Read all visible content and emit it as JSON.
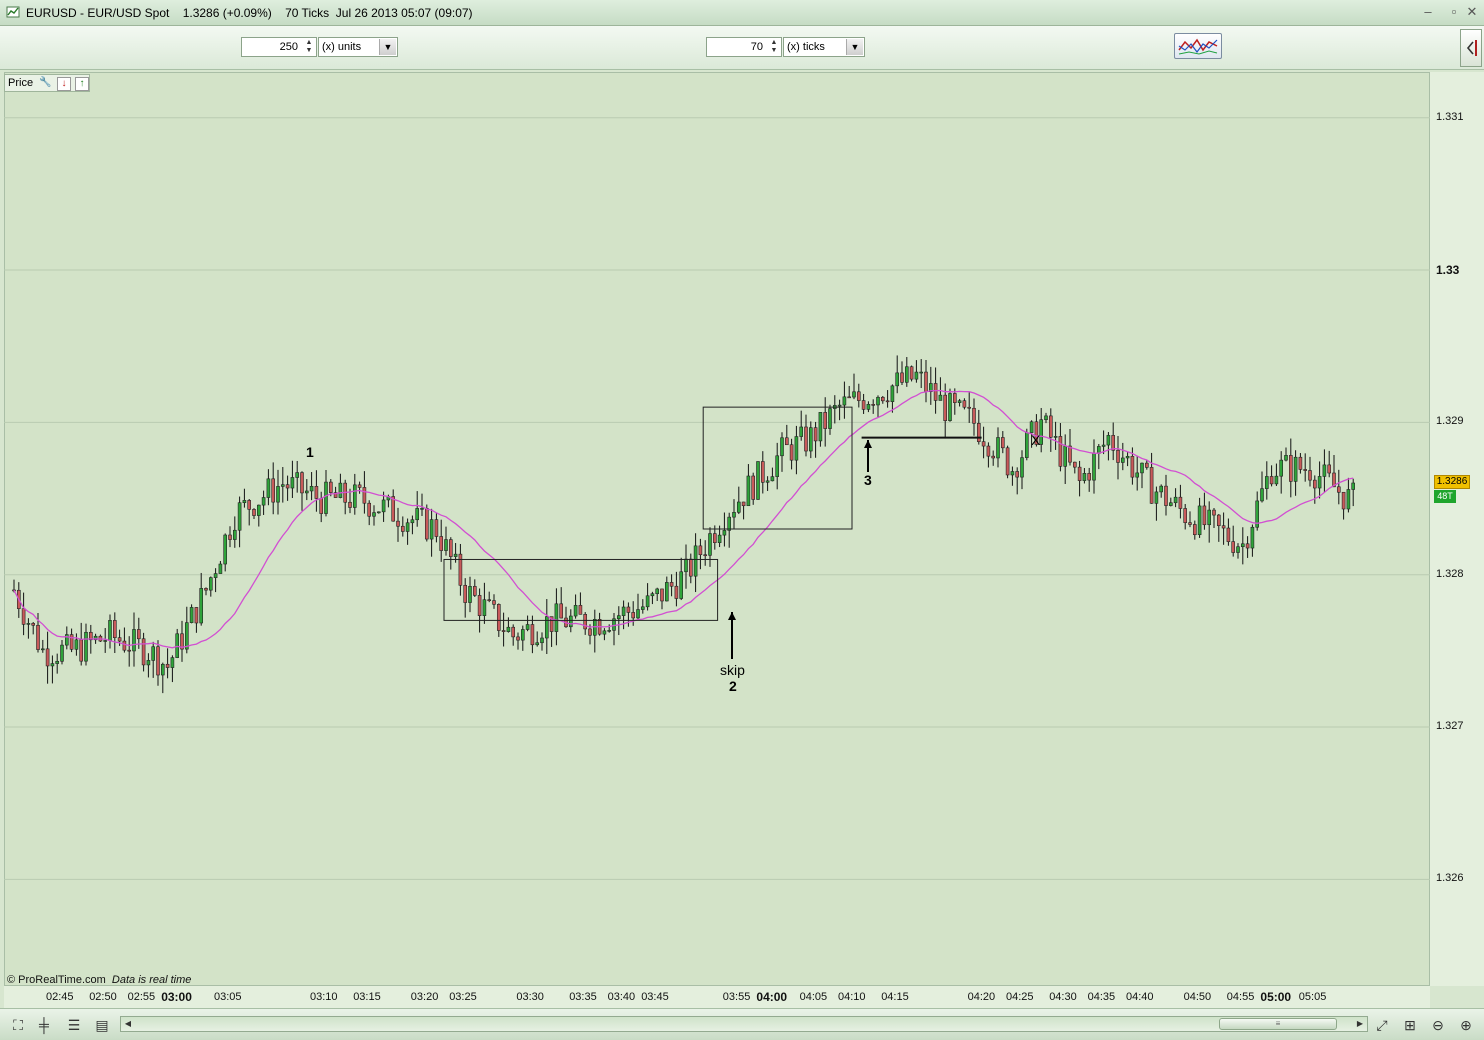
{
  "window": {
    "title": "EURUSD - EUR/USD Spot    1.3286 (+0.09%)    70 Ticks  Jul 26 2013 05:07 (09:07)",
    "min_icon": "minimize-icon",
    "restore_icon": "restore-icon",
    "close_icon": "close-icon"
  },
  "toolbar": {
    "units_value": "250",
    "units_label": "(x) units",
    "ticks_value": "70",
    "ticks_label": "(x) ticks",
    "indicator_icon": "indicator-chart-icon",
    "side_icon": "panel-toggle-icon"
  },
  "panel": {
    "label": "Price",
    "icons": [
      "wrench-icon",
      "remove-icon",
      "add-icon"
    ]
  },
  "y_axis": {
    "labels": [
      {
        "text": "1.331",
        "bold": false,
        "y": 1.331
      },
      {
        "text": "1.33",
        "bold": true,
        "y": 1.33
      },
      {
        "text": "1.329",
        "bold": false,
        "y": 1.329
      },
      {
        "text": "1.328",
        "bold": false,
        "y": 1.328
      },
      {
        "text": "1.327",
        "bold": false,
        "y": 1.327
      },
      {
        "text": "1.326",
        "bold": false,
        "y": 1.326
      }
    ],
    "current_price": "1.3286",
    "tick_count": "48T"
  },
  "x_axis": {
    "labels": [
      {
        "text": "02:45",
        "bold": false,
        "i": 10
      },
      {
        "text": "02:50",
        "bold": false,
        "i": 19
      },
      {
        "text": "02:55",
        "bold": false,
        "i": 27
      },
      {
        "text": "03:00",
        "bold": true,
        "i": 34
      },
      {
        "text": "03:05",
        "bold": false,
        "i": 45
      },
      {
        "text": "03:10",
        "bold": false,
        "i": 65
      },
      {
        "text": "03:15",
        "bold": false,
        "i": 74
      },
      {
        "text": "03:20",
        "bold": false,
        "i": 86
      },
      {
        "text": "03:25",
        "bold": false,
        "i": 94
      },
      {
        "text": "03:30",
        "bold": false,
        "i": 108
      },
      {
        "text": "03:35",
        "bold": false,
        "i": 119
      },
      {
        "text": "03:40",
        "bold": false,
        "i": 127
      },
      {
        "text": "03:45",
        "bold": false,
        "i": 134
      },
      {
        "text": "03:55",
        "bold": false,
        "i": 151
      },
      {
        "text": "04:00",
        "bold": true,
        "i": 158
      },
      {
        "text": "04:05",
        "bold": false,
        "i": 167
      },
      {
        "text": "04:10",
        "bold": false,
        "i": 175
      },
      {
        "text": "04:15",
        "bold": false,
        "i": 184
      },
      {
        "text": "04:20",
        "bold": false,
        "i": 202
      },
      {
        "text": "04:25",
        "bold": false,
        "i": 210
      },
      {
        "text": "04:30",
        "bold": false,
        "i": 219
      },
      {
        "text": "04:35",
        "bold": false,
        "i": 227
      },
      {
        "text": "04:40",
        "bold": false,
        "i": 235
      },
      {
        "text": "04:50",
        "bold": false,
        "i": 247
      },
      {
        "text": "04:55",
        "bold": false,
        "i": 256
      },
      {
        "text": "05:00",
        "bold": true,
        "i": 263
      },
      {
        "text": "05:05",
        "bold": false,
        "i": 271
      }
    ]
  },
  "annotations": {
    "label_1": "1",
    "label_skip": "skip",
    "label_2": "2",
    "label_3": "3",
    "label_x": "X"
  },
  "footer": {
    "copyright": "© ProRealTime.com",
    "realtime": "Data is real time"
  },
  "bottom_toolbar": {
    "left_icons": [
      "chart-select-icon",
      "candlestick-icon",
      "list-icon",
      "bars-icon"
    ],
    "right_icons": [
      "reset-zoom-icon",
      "autoscale-icon",
      "zoom-out-icon",
      "zoom-in-icon"
    ]
  },
  "colors": {
    "bullish": "#2fa33a",
    "bearish": "#c85a5a",
    "moving_average": "#d24fd2",
    "background": "#d3e3c8"
  },
  "chart_data": {
    "type": "candlestick",
    "series_name": "EURUSD",
    "ylim": [
      1.3253,
      1.3313
    ],
    "bars": 280,
    "price_path": [
      [
        0,
        1.3279
      ],
      [
        6,
        1.3275
      ],
      [
        12,
        1.3275
      ],
      [
        20,
        1.3276
      ],
      [
        28,
        1.3275
      ],
      [
        32,
        1.3274
      ],
      [
        40,
        1.3279
      ],
      [
        46,
        1.3284
      ],
      [
        56,
        1.3286
      ],
      [
        64,
        1.3285
      ],
      [
        72,
        1.3285
      ],
      [
        80,
        1.3284
      ],
      [
        88,
        1.3283
      ],
      [
        94,
        1.3279
      ],
      [
        104,
        1.3276
      ],
      [
        112,
        1.3277
      ],
      [
        122,
        1.3277
      ],
      [
        132,
        1.3278
      ],
      [
        140,
        1.328
      ],
      [
        148,
        1.3284
      ],
      [
        154,
        1.3286
      ],
      [
        160,
        1.3288
      ],
      [
        166,
        1.3289
      ],
      [
        172,
        1.3291
      ],
      [
        180,
        1.3292
      ],
      [
        188,
        1.3293
      ],
      [
        194,
        1.3291
      ],
      [
        200,
        1.329
      ],
      [
        208,
        1.3287
      ],
      [
        214,
        1.329
      ],
      [
        222,
        1.3286
      ],
      [
        228,
        1.3289
      ],
      [
        236,
        1.3286
      ],
      [
        244,
        1.3284
      ],
      [
        250,
        1.3283
      ],
      [
        256,
        1.3282
      ],
      [
        262,
        1.3287
      ],
      [
        270,
        1.3287
      ],
      [
        278,
        1.3285
      ]
    ],
    "rect_zones": [
      {
        "i0": 90,
        "i1": 147,
        "y0": 1.3281,
        "y1": 1.3277
      },
      {
        "i0": 144,
        "i1": 175,
        "y0": 1.3291,
        "y1": 1.3283
      }
    ],
    "hline": {
      "i0": 177,
      "i1": 202,
      "y": 1.3289
    }
  }
}
